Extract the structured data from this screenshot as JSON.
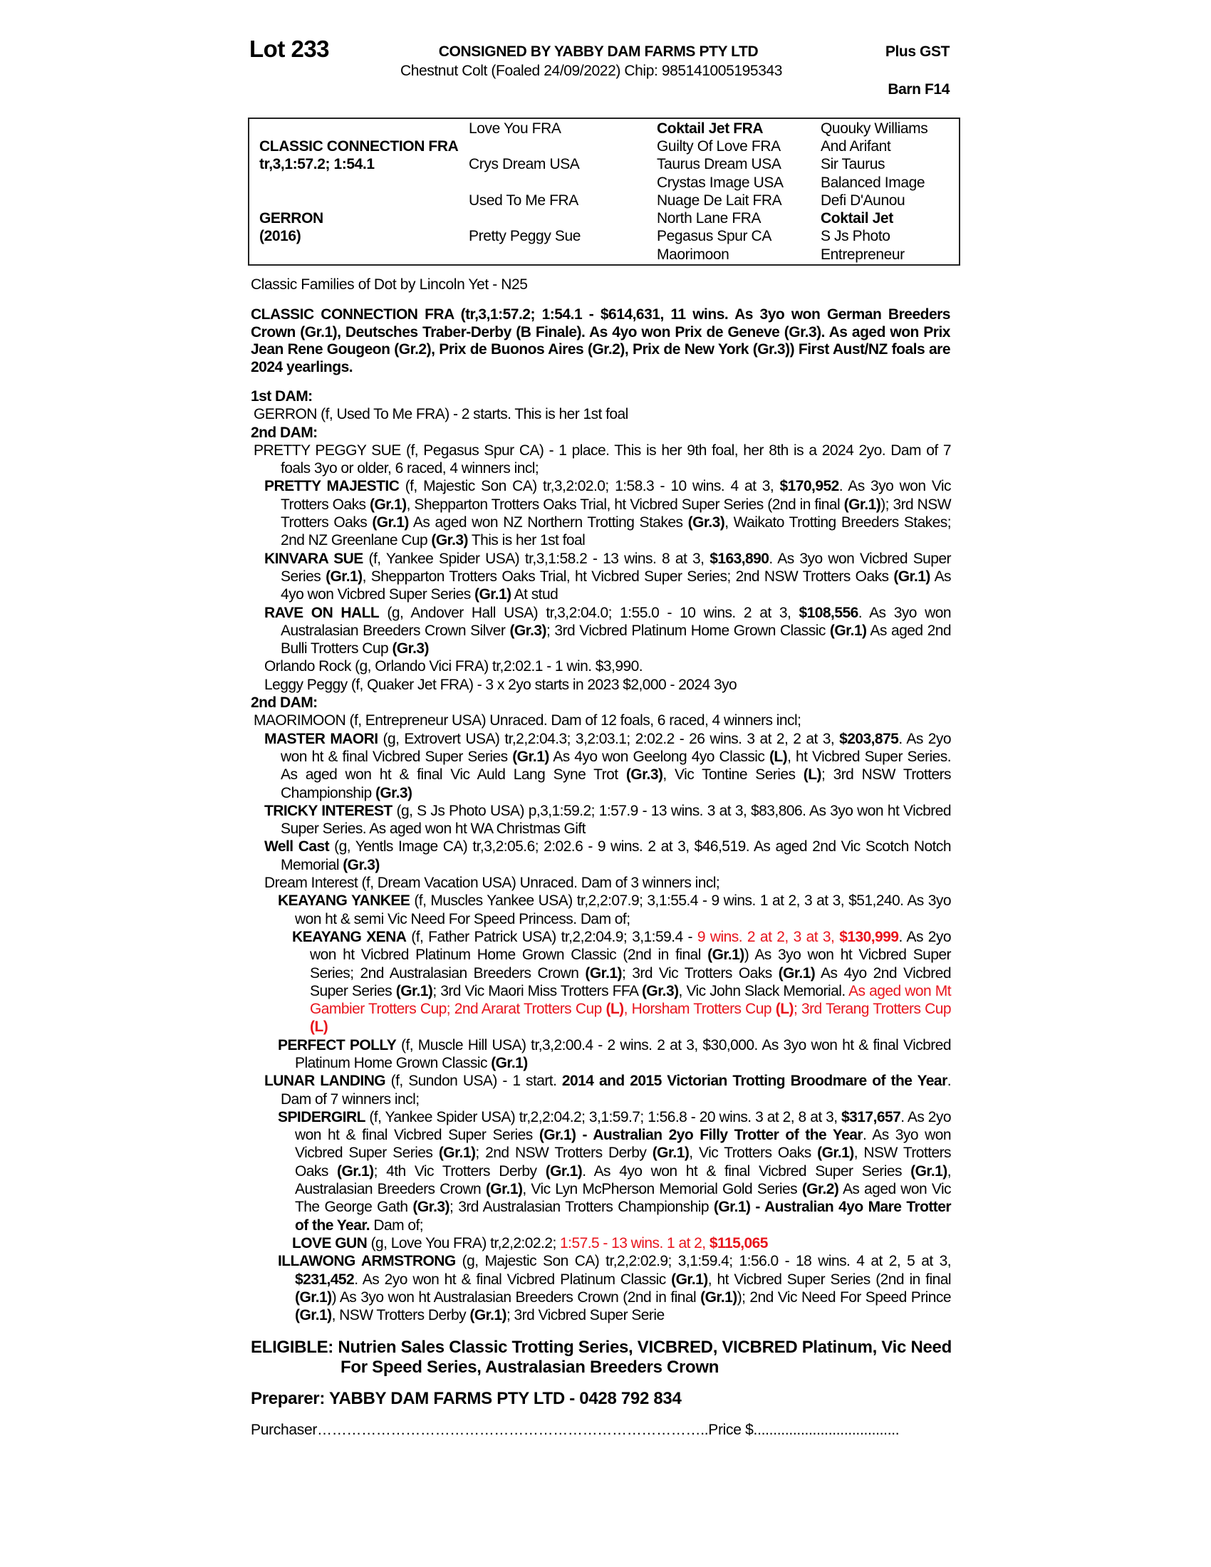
{
  "header": {
    "lot": "Lot 233",
    "consigned": "CONSIGNED BY YABBY DAM FARMS PTY LTD",
    "gst": "Plus GST",
    "description": "Chestnut Colt (Foaled  24/09/2022) Chip: 985141005195343",
    "barn": "Barn F14"
  },
  "pedigree": {
    "sire": "CLASSIC CONNECTION FRA",
    "sire_record": "tr,3,1:57.2; 1:54.1",
    "dam": "GERRON",
    "dam_year": "(2016)",
    "gen2": [
      "Love You FRA",
      "Crys Dream USA",
      "Used To Me FRA",
      "Pretty Peggy Sue"
    ],
    "gen3": [
      "Coktail Jet FRA",
      "Guilty Of Love FRA",
      "Taurus Dream USA",
      "Crystas Image USA",
      "Nuage De Lait FRA",
      "North Lane FRA",
      "Pegasus Spur CA",
      "Maorimoon"
    ],
    "gen4": [
      "Quouky Williams",
      "And Arifant",
      "Sir Taurus",
      "Balanced Image",
      "Defi D'Aunou",
      "Coktail Jet",
      "S Js Photo",
      "Entrepreneur"
    ]
  },
  "family": "Classic Families of Dot by Lincoln Yet - N25",
  "sire_paragraph": "CLASSIC CONNECTION FRA (tr,3,1:57.2; 1:54.1 - $614,631, 11 wins. As 3yo won German Breeders Crown (Gr.1), Deutsches Traber-Derby (B Finale). As 4yo won Prix de Geneve (Gr.3). As aged won Prix Jean Rene Gougeon (Gr.2), Prix de Buonos Aires (Gr.2), Prix de New York (Gr.3)) First Aust/NZ foals are 2024 yearlings.",
  "colors": {
    "text": "#000000",
    "highlight": "#e8141c"
  },
  "body": [
    {
      "lv": "h",
      "segs": [
        {
          "t": "1st DAM:",
          "s": "b"
        }
      ]
    },
    {
      "lv": "dam",
      "segs": [
        {
          "t": "GERRON (f, Used To Me FRA) - 2 starts. This is her 1st foal",
          "s": ""
        }
      ]
    },
    {
      "lv": "h",
      "segs": [
        {
          "t": "2nd DAM:",
          "s": "b"
        }
      ]
    },
    {
      "lv": "dam",
      "segs": [
        {
          "t": "PRETTY PEGGY SUE (f, Pegasus Spur CA) - 1 place. This is her 9th foal, her 8th is a 2024 2yo. Dam of 7 foals 3yo or older, 6 raced, 4 winners incl;",
          "s": ""
        }
      ]
    },
    {
      "lv": "l1",
      "segs": [
        {
          "t": "PRETTY MAJESTIC",
          "s": "b"
        },
        {
          "t": " (f, Majestic Son CA) tr,3,2:02.0; 1:58.3 - 10 wins. 4 at 3, ",
          "s": ""
        },
        {
          "t": "$170,952",
          "s": "b"
        },
        {
          "t": ". As 3yo won Vic Trotters Oaks ",
          "s": ""
        },
        {
          "t": "(Gr.1)",
          "s": "b"
        },
        {
          "t": ", Shepparton Trotters Oaks Trial, ht Vicbred Super Series (2nd in final ",
          "s": ""
        },
        {
          "t": "(Gr.1)",
          "s": "b"
        },
        {
          "t": "); 3rd NSW Trotters Oaks ",
          "s": ""
        },
        {
          "t": "(Gr.1)",
          "s": "b"
        },
        {
          "t": " As aged won NZ Northern Trotting Stakes ",
          "s": ""
        },
        {
          "t": "(Gr.3)",
          "s": "b"
        },
        {
          "t": ", Waikato Trotting Breeders Stakes; 2nd NZ Greenlane Cup ",
          "s": ""
        },
        {
          "t": "(Gr.3)",
          "s": "b"
        },
        {
          "t": " This is her 1st foal",
          "s": ""
        }
      ]
    },
    {
      "lv": "l1",
      "segs": [
        {
          "t": "KINVARA SUE",
          "s": "b"
        },
        {
          "t": " (f, Yankee Spider USA) tr,3,1:58.2 - 13 wins. 8 at 3, ",
          "s": ""
        },
        {
          "t": "$163,890",
          "s": "b"
        },
        {
          "t": ". As 3yo won Vicbred Super Series ",
          "s": ""
        },
        {
          "t": "(Gr.1)",
          "s": "b"
        },
        {
          "t": ", Shepparton Trotters Oaks Trial, ht Vicbred Super Series; 2nd NSW Trotters Oaks ",
          "s": ""
        },
        {
          "t": "(Gr.1)",
          "s": "b"
        },
        {
          "t": " As 4yo won Vicbred Super Series ",
          "s": ""
        },
        {
          "t": "(Gr.1)",
          "s": "b"
        },
        {
          "t": " At stud",
          "s": ""
        }
      ]
    },
    {
      "lv": "l1",
      "segs": [
        {
          "t": "RAVE ON HALL",
          "s": "b"
        },
        {
          "t": " (g, Andover Hall USA) tr,3,2:04.0; 1:55.0 - 10 wins. 2 at 3, ",
          "s": ""
        },
        {
          "t": "$108,556",
          "s": "b"
        },
        {
          "t": ". As 3yo won Australasian Breeders Crown Silver ",
          "s": ""
        },
        {
          "t": "(Gr.3)",
          "s": "b"
        },
        {
          "t": "; 3rd Vicbred Platinum Home Grown Classic ",
          "s": ""
        },
        {
          "t": "(Gr.1)",
          "s": "b"
        },
        {
          "t": " As aged 2nd Bulli Trotters Cup ",
          "s": ""
        },
        {
          "t": "(Gr.3)",
          "s": "b"
        }
      ]
    },
    {
      "lv": "l1",
      "segs": [
        {
          "t": "Orlando Rock (g, Orlando Vici FRA) tr,2:02.1 - 1 win. $3,990.",
          "s": ""
        }
      ]
    },
    {
      "lv": "l1",
      "segs": [
        {
          "t": "Leggy Peggy (f, Quaker Jet FRA) - 3 x 2yo starts in 2023 $2,000 - 2024 3yo",
          "s": ""
        }
      ]
    },
    {
      "lv": "h",
      "segs": [
        {
          "t": "2nd DAM:",
          "s": "b"
        }
      ]
    },
    {
      "lv": "dam",
      "segs": [
        {
          "t": "MAORIMOON (f, Entrepreneur USA) Unraced. Dam of 12 foals, 6 raced, 4 winners incl;",
          "s": ""
        }
      ]
    },
    {
      "lv": "l1",
      "segs": [
        {
          "t": "MASTER MAORI",
          "s": "b"
        },
        {
          "t": " (g, Extrovert USA) tr,2,2:04.3; 3,2:03.1; 2:02.2 - 26 wins. 3 at 2, 2 at 3, ",
          "s": ""
        },
        {
          "t": "$203,875",
          "s": "b"
        },
        {
          "t": ". As 2yo won ht & final Vicbred Super Series ",
          "s": ""
        },
        {
          "t": "(Gr.1)",
          "s": "b"
        },
        {
          "t": " As 4yo won Geelong 4yo Classic ",
          "s": ""
        },
        {
          "t": "(L)",
          "s": "b"
        },
        {
          "t": ", ht Vicbred Super Series. As aged won ht & final Vic Auld Lang Syne Trot ",
          "s": ""
        },
        {
          "t": "(Gr.3)",
          "s": "b"
        },
        {
          "t": ", Vic Tontine Series ",
          "s": ""
        },
        {
          "t": "(L)",
          "s": "b"
        },
        {
          "t": "; 3rd NSW Trotters Championship ",
          "s": ""
        },
        {
          "t": "(Gr.3)",
          "s": "b"
        }
      ]
    },
    {
      "lv": "l1",
      "segs": [
        {
          "t": "TRICKY INTEREST",
          "s": "b"
        },
        {
          "t": " (g, S Js Photo USA) p,3,1:59.2; 1:57.9 - 13 wins. 3 at 3, $83,806. As 3yo won ht Vicbred Super Series. As aged won ht WA Christmas Gift",
          "s": ""
        }
      ]
    },
    {
      "lv": "l1",
      "segs": [
        {
          "t": "Well Cast",
          "s": "b"
        },
        {
          "t": " (g, Yentls Image CA) tr,3,2:05.6; 2:02.6 - 9 wins. 2 at 3, $46,519. As aged 2nd Vic Scotch Notch Memorial ",
          "s": ""
        },
        {
          "t": "(Gr.3)",
          "s": "b"
        }
      ]
    },
    {
      "lv": "l1",
      "segs": [
        {
          "t": "Dream Interest (f, Dream Vacation USA) Unraced. Dam of 3 winners incl;",
          "s": ""
        }
      ]
    },
    {
      "lv": "l2",
      "segs": [
        {
          "t": "KEAYANG YANKEE",
          "s": "b"
        },
        {
          "t": " (f, Muscles Yankee USA) tr,2,2:07.9; 3,1:55.4 - 9 wins. 1 at 2, 3 at 3, $51,240. As 3yo won ht & semi Vic Need For Speed Princess. Dam of;",
          "s": ""
        }
      ]
    },
    {
      "lv": "l3",
      "segs": [
        {
          "t": "KEAYANG XENA",
          "s": "b"
        },
        {
          "t": " (f, Father Patrick USA) tr,2,2:04.9; 3,1:59.4 - ",
          "s": ""
        },
        {
          "t": "9 wins. 2 at 2, 3 at 3, ",
          "s": "r"
        },
        {
          "t": "$130,999",
          "s": "rb"
        },
        {
          "t": ". As 2yo won ht Vicbred Platinum Home Grown Classic (2nd in final ",
          "s": ""
        },
        {
          "t": "(Gr.1)",
          "s": "b"
        },
        {
          "t": ") As 3yo won ht Vicbred Super Series; 2nd Australasian Breeders Crown ",
          "s": ""
        },
        {
          "t": "(Gr.1)",
          "s": "b"
        },
        {
          "t": "; 3rd Vic Trotters Oaks ",
          "s": ""
        },
        {
          "t": "(Gr.1)",
          "s": "b"
        },
        {
          "t": " As 4yo 2nd Vicbred Super Series ",
          "s": ""
        },
        {
          "t": "(Gr.1)",
          "s": "b"
        },
        {
          "t": "; 3rd Vic Maori Miss Trotters FFA ",
          "s": ""
        },
        {
          "t": "(Gr.3)",
          "s": "b"
        },
        {
          "t": ", Vic John Slack Memorial. ",
          "s": ""
        },
        {
          "t": "As aged won Mt Gambier Trotters Cup; 2nd Ararat Trotters Cup ",
          "s": "r"
        },
        {
          "t": "(L)",
          "s": "rb"
        },
        {
          "t": ", Horsham Trotters Cup ",
          "s": "r"
        },
        {
          "t": "(L)",
          "s": "rb"
        },
        {
          "t": "; 3rd Terang Trotters Cup ",
          "s": "r"
        },
        {
          "t": "(L)",
          "s": "rb"
        }
      ]
    },
    {
      "lv": "l2",
      "segs": [
        {
          "t": "PERFECT POLLY",
          "s": "b"
        },
        {
          "t": " (f, Muscle Hill USA) tr,3,2:00.4 - 2 wins. 2 at 3, $30,000. As 3yo won ht & final Vicbred Platinum Home Grown Classic ",
          "s": ""
        },
        {
          "t": "(Gr.1)",
          "s": "b"
        }
      ]
    },
    {
      "lv": "l1",
      "segs": [
        {
          "t": "LUNAR LANDING",
          "s": "b"
        },
        {
          "t": " (f, Sundon USA) - 1 start. ",
          "s": ""
        },
        {
          "t": "2014 and 2015 Victorian Trotting Broodmare of the Year",
          "s": "b"
        },
        {
          "t": ". Dam of 7 winners incl;",
          "s": ""
        }
      ]
    },
    {
      "lv": "l2",
      "segs": [
        {
          "t": "SPIDERGIRL",
          "s": "b"
        },
        {
          "t": " (f, Yankee Spider USA) tr,2,2:04.2; 3,1:59.7; 1:56.8 - 20 wins. 3 at 2, 8 at 3, ",
          "s": ""
        },
        {
          "t": "$317,657",
          "s": "b"
        },
        {
          "t": ". As 2yo won ht & final Vicbred Super Series ",
          "s": ""
        },
        {
          "t": "(Gr.1) - Australian 2yo Filly Trotter of the Year",
          "s": "b"
        },
        {
          "t": ". As 3yo won Vicbred Super Series ",
          "s": ""
        },
        {
          "t": "(Gr.1)",
          "s": "b"
        },
        {
          "t": "; 2nd NSW Trotters Derby ",
          "s": ""
        },
        {
          "t": "(Gr.1)",
          "s": "b"
        },
        {
          "t": ", Vic Trotters Oaks ",
          "s": ""
        },
        {
          "t": "(Gr.1)",
          "s": "b"
        },
        {
          "t": ", NSW Trotters Oaks ",
          "s": ""
        },
        {
          "t": "(Gr.1)",
          "s": "b"
        },
        {
          "t": "; 4th Vic Trotters Derby ",
          "s": ""
        },
        {
          "t": "(Gr.1)",
          "s": "b"
        },
        {
          "t": ". As 4yo won ht & final Vicbred Super Series ",
          "s": ""
        },
        {
          "t": "(Gr.1)",
          "s": "b"
        },
        {
          "t": ", Australasian Breeders Crown ",
          "s": ""
        },
        {
          "t": "(Gr.1)",
          "s": "b"
        },
        {
          "t": ", Vic Lyn McPherson Memorial Gold Series ",
          "s": ""
        },
        {
          "t": "(Gr.2)",
          "s": "b"
        },
        {
          "t": " As aged won Vic The George Gath ",
          "s": ""
        },
        {
          "t": "(Gr.3)",
          "s": "b"
        },
        {
          "t": "; 3rd Australasian Trotters Championship ",
          "s": ""
        },
        {
          "t": "(Gr.1) - Australian 4yo Mare Trotter of the Year.",
          "s": "b"
        },
        {
          "t": " Dam of;",
          "s": ""
        }
      ]
    },
    {
      "lv": "l3",
      "segs": [
        {
          "t": "LOVE GUN",
          "s": "b"
        },
        {
          "t": " (g, Love You FRA) tr,2,2:02.2; ",
          "s": ""
        },
        {
          "t": "1:57.5 - 13 wins. 1 at 2, ",
          "s": "r"
        },
        {
          "t": "$115,065",
          "s": "rb"
        }
      ]
    },
    {
      "lv": "l2",
      "segs": [
        {
          "t": "ILLAWONG ARMSTRONG",
          "s": "b"
        },
        {
          "t": " (g, Majestic Son CA) tr,2,2:02.9; 3,1:59.4; 1:56.0 - 18 wins. 4 at 2, 5 at 3, ",
          "s": ""
        },
        {
          "t": "$231,452",
          "s": "b"
        },
        {
          "t": ". As 2yo won ht & final Vicbred Platinum Classic ",
          "s": ""
        },
        {
          "t": "(Gr.1)",
          "s": "b"
        },
        {
          "t": ", ht Vicbred Super Series (2nd in final ",
          "s": ""
        },
        {
          "t": "(Gr.1)",
          "s": "b"
        },
        {
          "t": ") As 3yo won ht Australasian Breeders Crown (2nd in final ",
          "s": ""
        },
        {
          "t": "(Gr.1)",
          "s": "b"
        },
        {
          "t": "); 2nd Vic Need For Speed Prince ",
          "s": ""
        },
        {
          "t": "(Gr.1)",
          "s": "b"
        },
        {
          "t": ", NSW Trotters Derby ",
          "s": ""
        },
        {
          "t": "(Gr.1)",
          "s": "b"
        },
        {
          "t": "; 3rd Vicbred Super Serie",
          "s": ""
        }
      ]
    }
  ],
  "eligible": {
    "label": "ELIGIBLE:",
    "text": "Nutrien Sales Classic Trotting Series, VICBRED, VICBRED Platinum, Vic Need For Speed Series, Australasian Breeders Crown"
  },
  "preparer": "Preparer: YABBY DAM FARMS PTY LTD - 0428 792 834",
  "purchaser_line": "Purchaser……………………………………………………………………..Price $....................................."
}
